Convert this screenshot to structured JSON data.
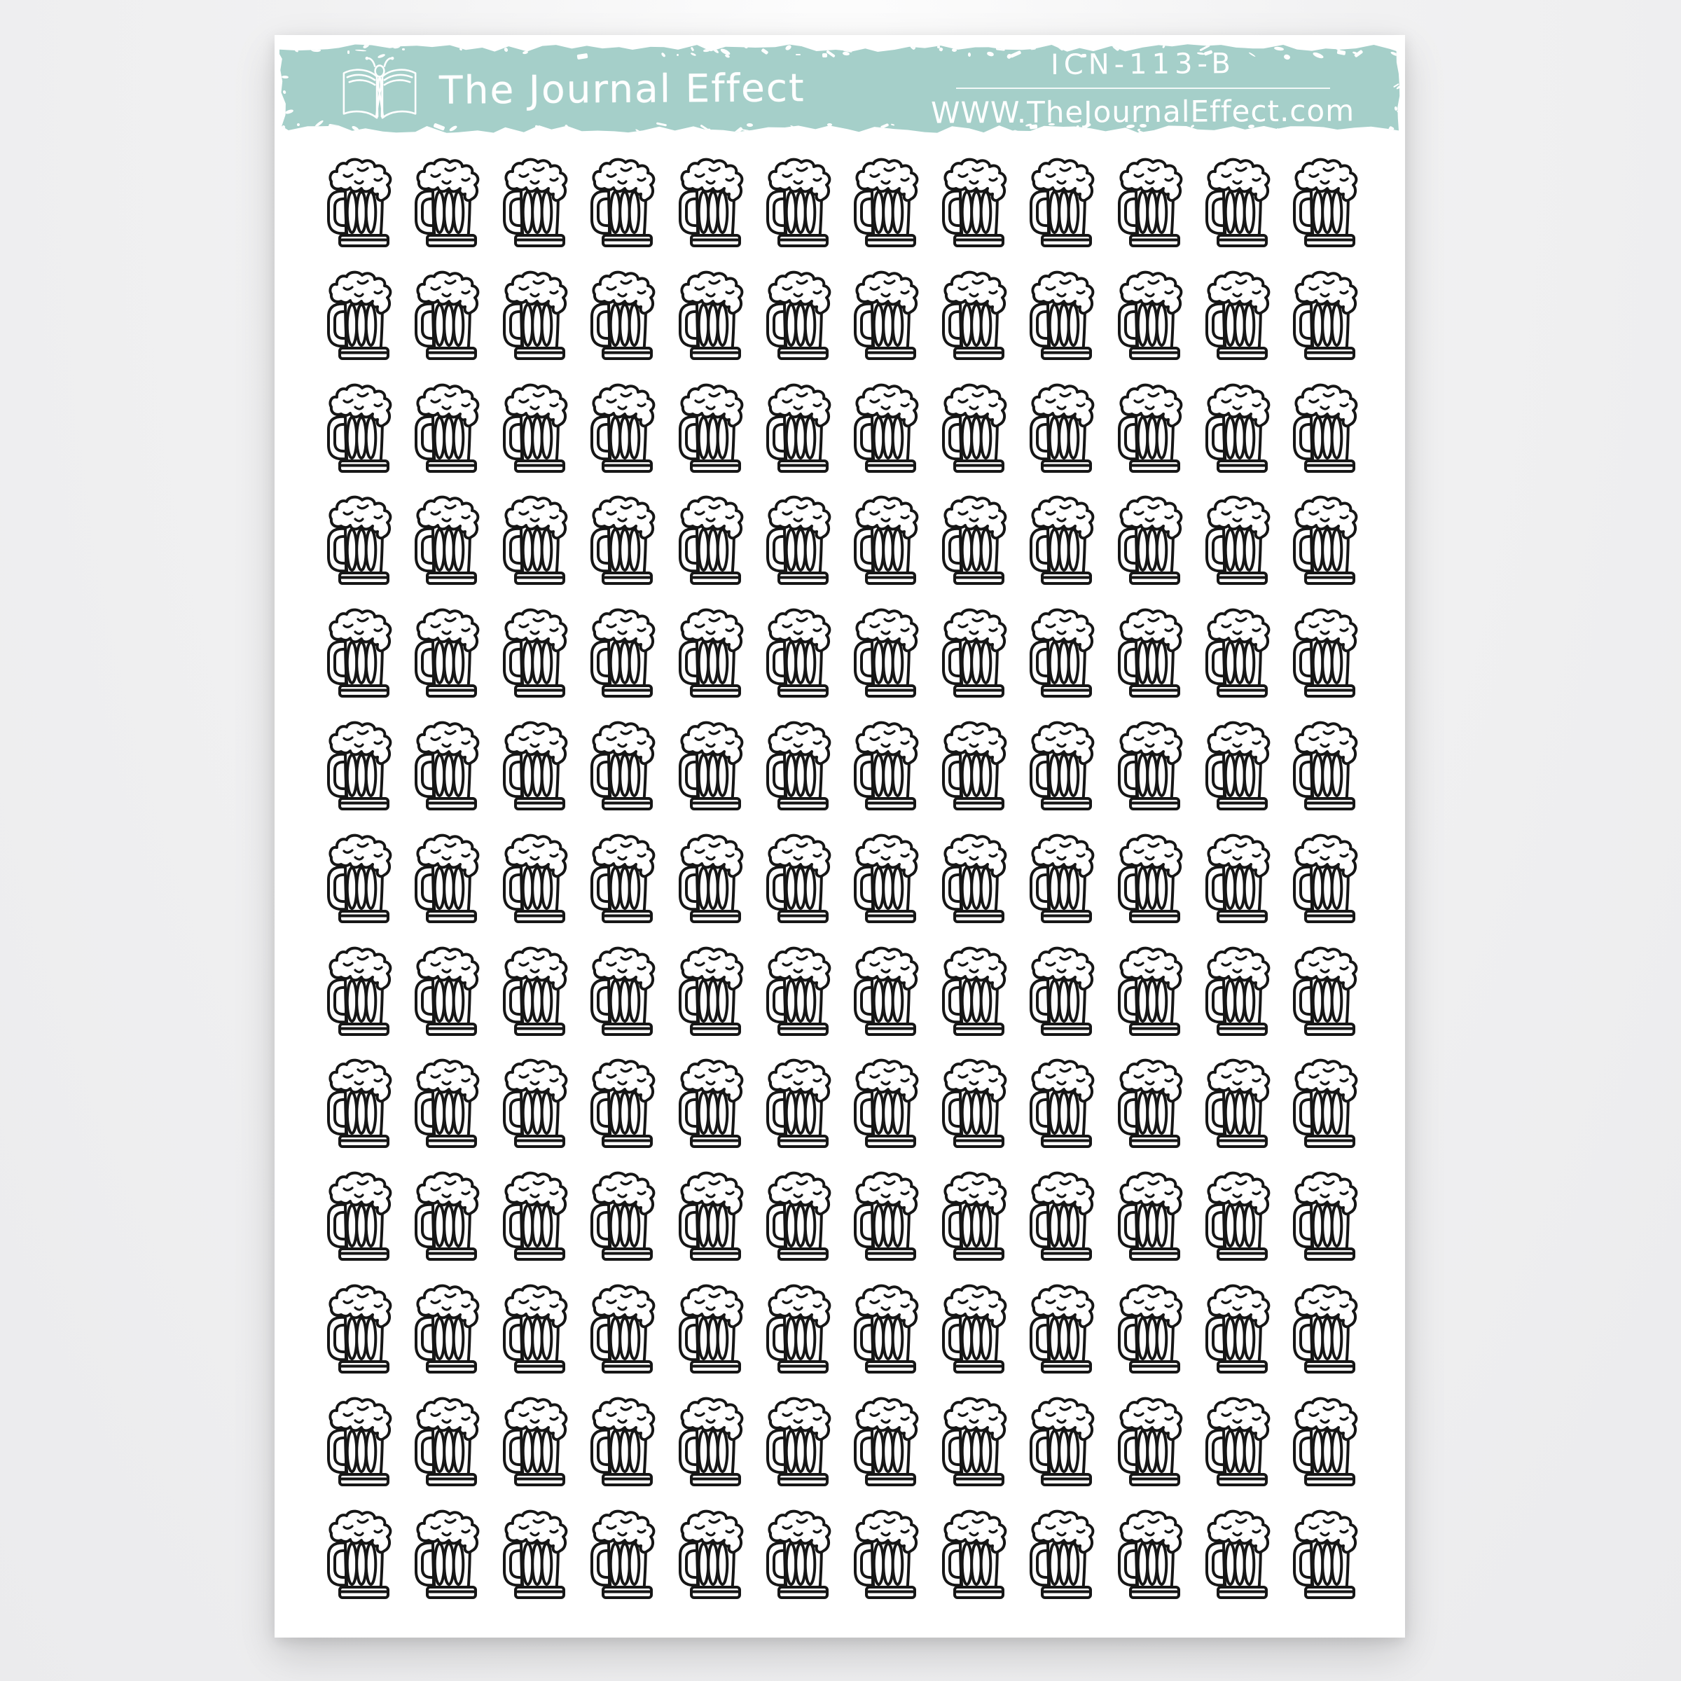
{
  "page": {
    "background_color": "#f1f1f2"
  },
  "sheet": {
    "background_color": "#ffffff"
  },
  "header": {
    "brand": "The Journal Effect",
    "logo_icon": "open-book-butterfly-icon",
    "product_code": "ICN-113-B",
    "website": "WWW.TheJournalEffect.com",
    "background_color": "#a5cfc9",
    "text_color": "#ffffff"
  },
  "sticker_grid": {
    "sticker_icon": "beer-mug-icon",
    "rows": 13,
    "columns": 12,
    "count": 156,
    "icon_color": "#161616"
  }
}
